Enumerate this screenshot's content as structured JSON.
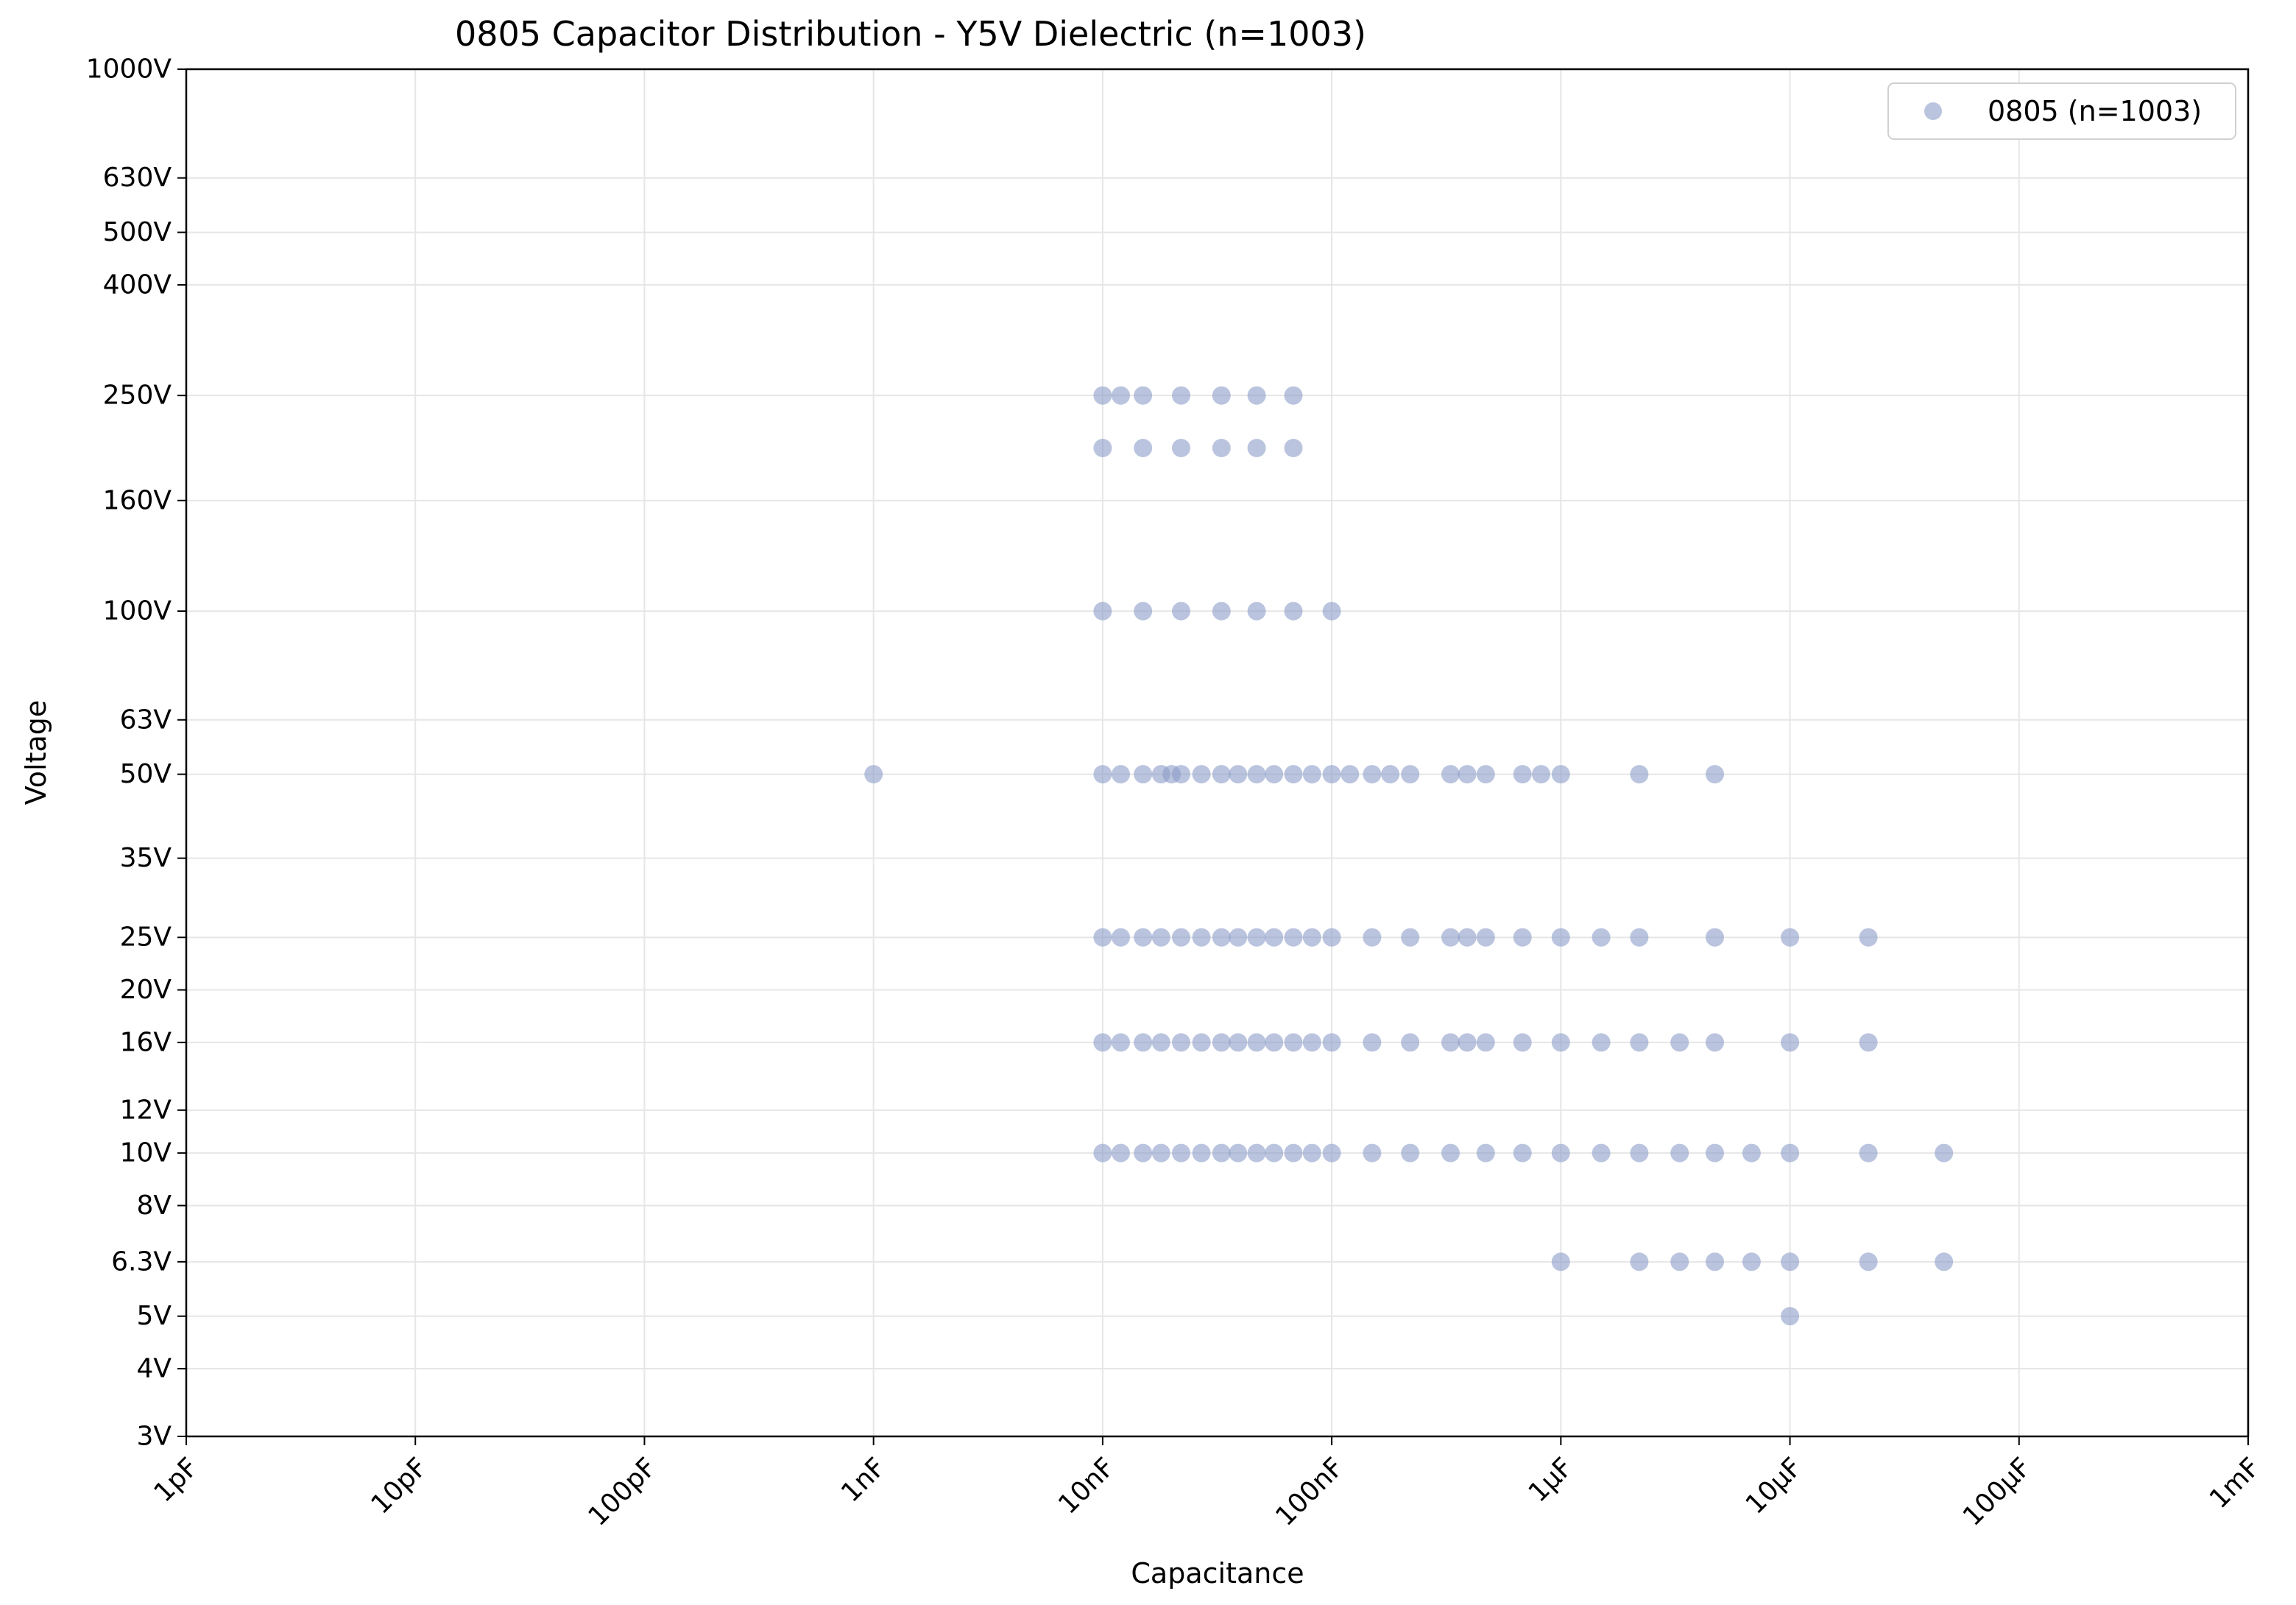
{
  "chart_data": {
    "type": "scatter",
    "title": "0805 Capacitor Distribution - Y5V Dielectric (n=1003)",
    "xlabel": "Capacitance",
    "ylabel": "Voltage",
    "x_scale": "log",
    "y_scale": "log",
    "xlim": [
      "1pF",
      "1mF"
    ],
    "ylim": [
      "3V",
      "1000V"
    ],
    "grid": true,
    "legend_position": "top-right",
    "x_ticks": [
      "1pF",
      "10pF",
      "100pF",
      "1nF",
      "10nF",
      "100nF",
      "1µF",
      "10µF",
      "100µF",
      "1mF"
    ],
    "y_ticks": [
      "3V",
      "4V",
      "5V",
      "6.3V",
      "8V",
      "10V",
      "12V",
      "16V",
      "20V",
      "25V",
      "35V",
      "50V",
      "63V",
      "100V",
      "160V",
      "250V",
      "400V",
      "500V",
      "630V",
      "1000V"
    ],
    "marker_color": "#8c9dc8",
    "series": [
      {
        "name": "0805 (n=1003)",
        "rows": [
          {
            "voltage": "250V",
            "capacitance": [
              "10nF",
              "12nF",
              "15nF",
              "22nF",
              "33nF",
              "47nF",
              "68nF"
            ]
          },
          {
            "voltage": "200V",
            "capacitance": [
              "10nF",
              "15nF",
              "22nF",
              "33nF",
              "47nF",
              "68nF"
            ]
          },
          {
            "voltage": "100V",
            "capacitance": [
              "10nF",
              "15nF",
              "22nF",
              "33nF",
              "47nF",
              "68nF",
              "100nF"
            ]
          },
          {
            "voltage": "50V",
            "capacitance": [
              "1nF",
              "10nF",
              "12nF",
              "15nF",
              "18nF",
              "20nF",
              "22nF",
              "27nF",
              "33nF",
              "39nF",
              "47nF",
              "56nF",
              "68nF",
              "82nF",
              "100nF",
              "120nF",
              "150nF",
              "180nF",
              "220nF",
              "330nF",
              "390nF",
              "470nF",
              "680nF",
              "820nF",
              "1µF",
              "2.2µF",
              "4.7µF"
            ]
          },
          {
            "voltage": "25V",
            "capacitance": [
              "10nF",
              "12nF",
              "15nF",
              "18nF",
              "22nF",
              "27nF",
              "33nF",
              "39nF",
              "47nF",
              "56nF",
              "68nF",
              "82nF",
              "100nF",
              "150nF",
              "220nF",
              "330nF",
              "390nF",
              "470nF",
              "680nF",
              "1µF",
              "1.5µF",
              "2.2µF",
              "4.7µF",
              "10µF",
              "22µF"
            ]
          },
          {
            "voltage": "16V",
            "capacitance": [
              "10nF",
              "12nF",
              "15nF",
              "18nF",
              "22nF",
              "27nF",
              "33nF",
              "39nF",
              "47nF",
              "56nF",
              "68nF",
              "82nF",
              "100nF",
              "150nF",
              "220nF",
              "330nF",
              "390nF",
              "470nF",
              "680nF",
              "1µF",
              "1.5µF",
              "2.2µF",
              "3.3µF",
              "4.7µF",
              "10µF",
              "22µF"
            ]
          },
          {
            "voltage": "10V",
            "capacitance": [
              "10nF",
              "12nF",
              "15nF",
              "18nF",
              "22nF",
              "27nF",
              "33nF",
              "39nF",
              "47nF",
              "56nF",
              "68nF",
              "82nF",
              "100nF",
              "150nF",
              "220nF",
              "330nF",
              "470nF",
              "680nF",
              "1µF",
              "1.5µF",
              "2.2µF",
              "3.3µF",
              "4.7µF",
              "6.8µF",
              "10µF",
              "22µF",
              "47µF"
            ]
          },
          {
            "voltage": "6.3V",
            "capacitance": [
              "1µF",
              "2.2µF",
              "3.3µF",
              "4.7µF",
              "6.8µF",
              "10µF",
              "22µF",
              "47µF"
            ]
          },
          {
            "voltage": "5V",
            "capacitance": [
              "10µF"
            ]
          }
        ]
      }
    ]
  }
}
